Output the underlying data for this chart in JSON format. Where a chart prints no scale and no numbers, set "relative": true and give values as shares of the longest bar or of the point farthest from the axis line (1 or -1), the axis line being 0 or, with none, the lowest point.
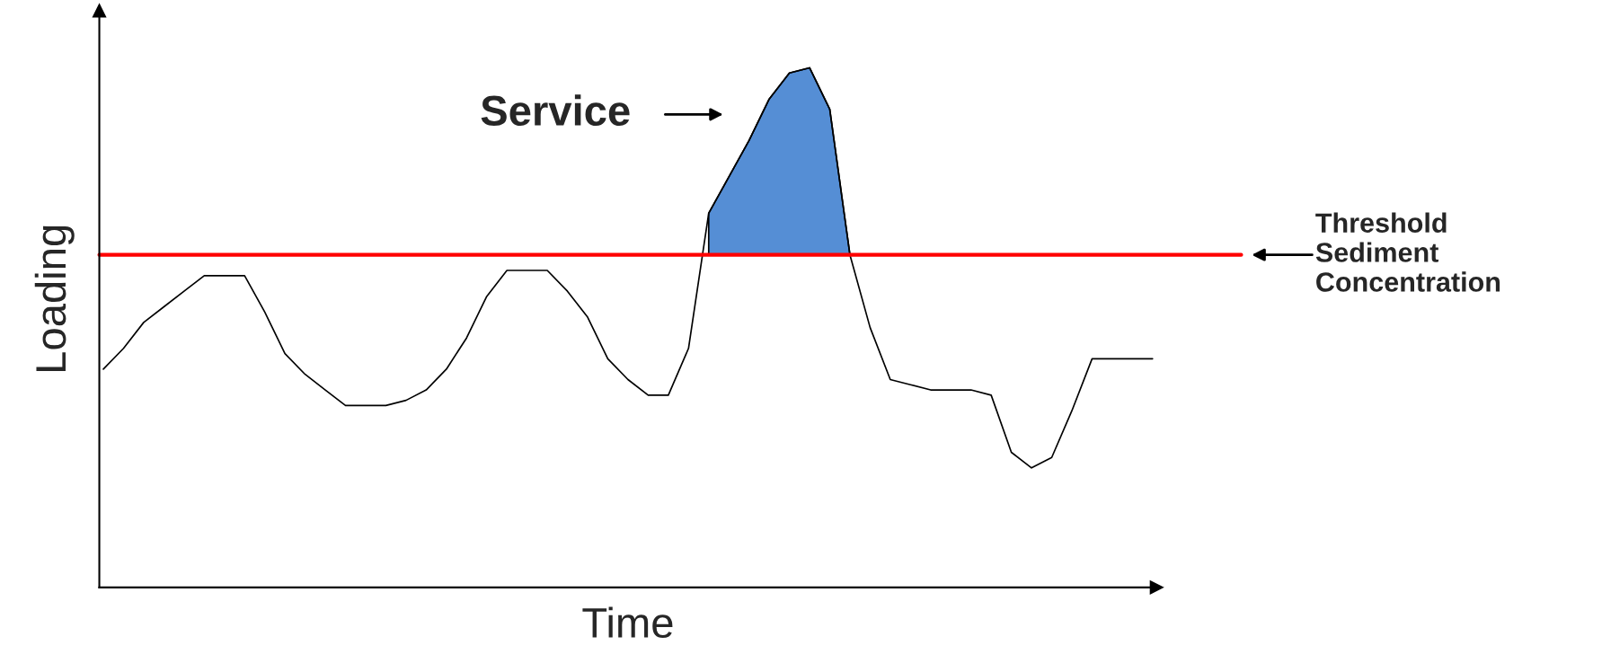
{
  "chart_data": {
    "type": "line",
    "relative": true,
    "xlabel": "Time",
    "ylabel": "Loading",
    "categories": [
      null,
      null,
      null,
      null,
      null,
      null,
      null,
      null,
      null,
      null,
      null,
      null,
      null,
      null,
      null,
      null,
      null,
      null,
      null,
      null,
      null,
      null,
      null,
      null,
      null,
      null,
      null,
      null,
      null,
      null,
      null,
      null,
      null,
      null,
      null,
      null,
      null,
      null,
      null,
      null,
      null,
      null,
      null,
      null,
      null,
      null,
      null,
      null,
      null,
      null,
      null,
      null,
      null
    ],
    "series": [
      {
        "color": "#000000",
        "values": [
          0.42,
          0.46,
          0.51,
          0.54,
          0.57,
          0.6,
          0.6,
          0.6,
          0.53,
          0.45,
          0.41,
          0.38,
          0.35,
          0.35,
          0.35,
          0.36,
          0.38,
          0.42,
          0.48,
          0.56,
          0.61,
          0.61,
          0.61,
          0.57,
          0.52,
          0.44,
          0.4,
          0.37,
          0.37,
          0.46,
          0.72,
          0.79,
          0.86,
          0.94,
          0.99,
          1.0,
          0.92,
          0.64,
          0.5,
          0.4,
          0.39,
          0.38,
          0.38,
          0.38,
          0.37,
          0.26,
          0.23,
          0.25,
          0.34,
          0.44,
          0.44,
          0.44,
          0.44
        ]
      },
      {
        "type": "area",
        "color": "#558ed5",
        "values": [
          null,
          null,
          null,
          null,
          null,
          null,
          null,
          null,
          null,
          null,
          null,
          null,
          null,
          null,
          null,
          null,
          null,
          null,
          null,
          null,
          null,
          null,
          null,
          null,
          null,
          null,
          null,
          null,
          null,
          null,
          0.72,
          0.79,
          0.86,
          0.94,
          0.99,
          1.0,
          0.92,
          0.64,
          null,
          null,
          null,
          null,
          null,
          null,
          null,
          null,
          null,
          null,
          null,
          null,
          null,
          null,
          null
        ]
      }
    ],
    "ref_lines": [
      {
        "axis": "y",
        "value": 0.64,
        "label": "Threshold\nSediment\nConcentration",
        "color": "#ff0000"
      }
    ],
    "annotations": [
      "Service"
    ],
    "grid": false,
    "legend": false
  }
}
